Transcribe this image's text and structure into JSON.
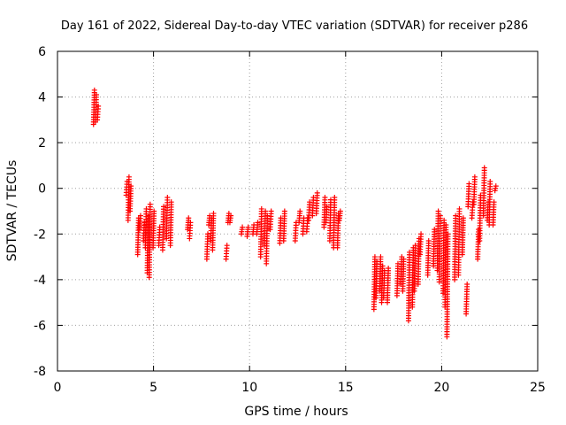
{
  "chart_data": {
    "type": "scatter",
    "title": "Day 161 of 2022, Sidereal Day-to-day VTEC variation (SDTVAR) for receiver p286",
    "xlabel": "GPS time / hours",
    "ylabel": "SDTVAR / TECUs",
    "xlim": [
      0,
      25
    ],
    "ylim": [
      -8,
      6
    ],
    "xticks": [
      0,
      5,
      10,
      15,
      20,
      25
    ],
    "yticks": [
      -8,
      -6,
      -4,
      -2,
      0,
      2,
      4,
      6
    ],
    "grid": true,
    "marker": "+",
    "color": "#ff0000",
    "segments": [
      [
        1.9,
        2.8,
        4.3
      ],
      [
        2.0,
        2.9,
        4.1
      ],
      [
        2.1,
        3.0,
        3.6
      ],
      [
        3.6,
        -0.3,
        0.3
      ],
      [
        3.7,
        -1.4,
        0.5
      ],
      [
        3.8,
        -1.0,
        0.1
      ],
      [
        4.2,
        -2.9,
        -1.3
      ],
      [
        4.3,
        -1.8,
        -1.2
      ],
      [
        4.5,
        -2.3,
        -1.5
      ],
      [
        4.6,
        -2.6,
        -0.9
      ],
      [
        4.7,
        -3.7,
        -1.2
      ],
      [
        4.8,
        -3.9,
        -0.7
      ],
      [
        5.0,
        -2.6,
        -1.0
      ],
      [
        5.3,
        -2.5,
        -1.7
      ],
      [
        5.5,
        -2.7,
        -0.8
      ],
      [
        5.7,
        -2.2,
        -0.4
      ],
      [
        5.9,
        -2.5,
        -0.6
      ],
      [
        6.8,
        -1.8,
        -1.3
      ],
      [
        6.9,
        -2.2,
        -1.5
      ],
      [
        7.8,
        -3.1,
        -2.0
      ],
      [
        7.9,
        -1.6,
        -1.2
      ],
      [
        8.0,
        -2.3,
        -1.3
      ],
      [
        8.1,
        -2.7,
        -1.1
      ],
      [
        8.8,
        -3.1,
        -2.5
      ],
      [
        8.9,
        -1.5,
        -1.1
      ],
      [
        9.0,
        -1.5,
        -1.2
      ],
      [
        9.6,
        -2.0,
        -1.7
      ],
      [
        9.9,
        -2.1,
        -1.7
      ],
      [
        10.2,
        -2.0,
        -1.6
      ],
      [
        10.4,
        -2.0,
        -1.5
      ],
      [
        10.6,
        -3.0,
        -0.9
      ],
      [
        10.8,
        -2.5,
        -1.0
      ],
      [
        10.9,
        -3.3,
        -1.2
      ],
      [
        11.1,
        -1.8,
        -1.0
      ],
      [
        11.6,
        -2.4,
        -1.3
      ],
      [
        11.8,
        -2.3,
        -1.0
      ],
      [
        12.4,
        -2.3,
        -1.5
      ],
      [
        12.6,
        -1.5,
        -1.0
      ],
      [
        12.8,
        -2.0,
        -1.3
      ],
      [
        13.0,
        -1.9,
        -1.3
      ],
      [
        13.1,
        -1.4,
        -0.6
      ],
      [
        13.3,
        -1.2,
        -0.4
      ],
      [
        13.5,
        -1.1,
        -0.2
      ],
      [
        13.9,
        -1.7,
        -0.4
      ],
      [
        14.0,
        -1.5,
        -0.8
      ],
      [
        14.2,
        -2.3,
        -0.5
      ],
      [
        14.4,
        -2.6,
        -0.4
      ],
      [
        14.6,
        -2.6,
        -1.1
      ],
      [
        14.7,
        -1.4,
        -1.0
      ],
      [
        16.5,
        -5.3,
        -3.0
      ],
      [
        16.6,
        -4.8,
        -3.2
      ],
      [
        16.8,
        -4.5,
        -3.0
      ],
      [
        16.9,
        -5.0,
        -3.4
      ],
      [
        17.0,
        -4.8,
        -3.6
      ],
      [
        17.2,
        -5.0,
        -3.5
      ],
      [
        17.7,
        -4.7,
        -3.3
      ],
      [
        17.9,
        -4.2,
        -3.0
      ],
      [
        18.0,
        -4.5,
        -3.1
      ],
      [
        18.3,
        -5.8,
        -2.8
      ],
      [
        18.5,
        -5.2,
        -2.6
      ],
      [
        18.6,
        -4.5,
        -2.5
      ],
      [
        18.8,
        -4.2,
        -2.2
      ],
      [
        18.9,
        -2.9,
        -2.0
      ],
      [
        19.3,
        -3.8,
        -2.3
      ],
      [
        19.6,
        -3.4,
        -1.8
      ],
      [
        19.8,
        -3.6,
        -1.0
      ],
      [
        19.9,
        -4.1,
        -1.2
      ],
      [
        20.1,
        -4.6,
        -1.4
      ],
      [
        20.2,
        -5.2,
        -1.6
      ],
      [
        20.3,
        -6.5,
        -2.0
      ],
      [
        20.7,
        -4.0,
        -1.2
      ],
      [
        20.9,
        -3.8,
        -0.9
      ],
      [
        21.1,
        -2.9,
        -1.3
      ],
      [
        21.3,
        -5.5,
        -4.2
      ],
      [
        21.4,
        -0.8,
        0.2
      ],
      [
        21.6,
        -1.3,
        -0.6
      ],
      [
        21.7,
        -0.7,
        0.5
      ],
      [
        21.9,
        -3.1,
        -1.8
      ],
      [
        22.0,
        -2.3,
        -0.3
      ],
      [
        22.2,
        -1.2,
        0.9
      ],
      [
        22.4,
        -1.4,
        -0.6
      ],
      [
        22.5,
        -1.6,
        0.3
      ],
      [
        22.7,
        -1.6,
        -0.6
      ],
      [
        22.8,
        -0.1,
        0.1
      ]
    ]
  }
}
